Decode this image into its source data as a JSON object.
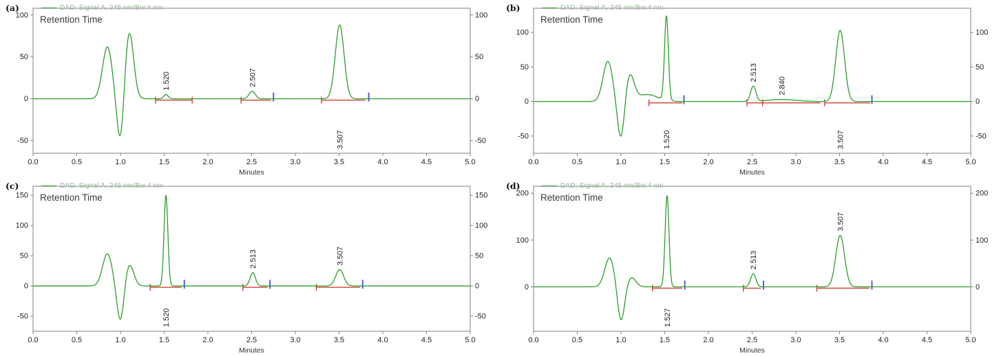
{
  "colors": {
    "trace": "#2a9d2a",
    "baseline_red": "#d04030",
    "marker_blue": "#5b5bd6",
    "frame": "#808080",
    "tick_label": "#222222",
    "legend_text": "#9ab09a"
  },
  "chart_data": [
    {
      "type": "line",
      "panel_label": "(a)",
      "legend": "DAD: Signal A, 245 nm/Bw:4 nm",
      "annotation": "Retention Time",
      "xlabel": "Minutes",
      "x_range": [
        0.0,
        5.0
      ],
      "x_ticks": [
        0.0,
        0.5,
        1.0,
        1.5,
        2.0,
        2.5,
        3.0,
        3.5,
        4.0,
        4.5,
        5.0
      ],
      "y_ticks": [
        -50,
        0,
        50,
        100
      ],
      "y_range": [
        -65,
        108
      ],
      "series_color": "#2a9d2a",
      "solvent_front": [
        {
          "x": 0.85,
          "height": 62,
          "sigma": 0.055
        },
        {
          "x": 1.0,
          "height": -55,
          "sigma": 0.04
        },
        {
          "x": 1.1,
          "height": 80,
          "sigma": 0.05
        }
      ],
      "peaks": [
        {
          "rt": "1.520",
          "x": 1.52,
          "height": 5,
          "sigma": 0.025,
          "label_side": "above"
        },
        {
          "rt": "2.507",
          "x": 2.507,
          "height": 9,
          "sigma": 0.035,
          "label_side": "above"
        },
        {
          "rt": "3.507",
          "x": 3.507,
          "height": 88,
          "sigma": 0.05,
          "label_side": "below"
        }
      ],
      "baselines": [
        {
          "x1": 1.4,
          "x2": 1.82
        },
        {
          "x1": 2.38,
          "x2": 2.72
        },
        {
          "x1": 3.3,
          "x2": 3.8
        }
      ],
      "red_ticks": [
        1.4,
        1.82,
        2.38,
        3.3
      ],
      "blue_ticks": [
        2.75,
        3.84
      ]
    },
    {
      "type": "line",
      "panel_label": "(b)",
      "legend": "DAD: Signal A, 245 nm/Bw:4 nm",
      "annotation": "Retention Time",
      "xlabel": "Minutes",
      "x_range": [
        0.0,
        5.0
      ],
      "x_ticks": [
        0.0,
        0.5,
        1.0,
        1.5,
        2.0,
        2.5,
        3.0,
        3.5,
        4.0,
        4.5,
        5.0
      ],
      "y_ticks": [
        -50,
        0,
        50,
        100
      ],
      "y_range": [
        -75,
        135
      ],
      "series_color": "#2a9d2a",
      "solvent_front": [
        {
          "x": 0.85,
          "height": 58,
          "sigma": 0.055
        },
        {
          "x": 1.0,
          "height": -57,
          "sigma": 0.04
        },
        {
          "x": 1.1,
          "height": 38,
          "sigma": 0.05
        },
        {
          "x": 1.3,
          "height": 10,
          "sigma": 0.12
        }
      ],
      "peaks": [
        {
          "rt": "1.520",
          "x": 1.52,
          "height": 122,
          "sigma": 0.022,
          "label_side": "below"
        },
        {
          "rt": "2.513",
          "x": 2.513,
          "height": 22,
          "sigma": 0.03,
          "label_side": "above"
        },
        {
          "rt": "2.840",
          "x": 2.84,
          "height": 3,
          "sigma": 0.15,
          "label_side": "above"
        },
        {
          "rt": "3.507",
          "x": 3.507,
          "height": 103,
          "sigma": 0.05,
          "label_side": "below"
        }
      ],
      "baselines": [
        {
          "x1": 1.32,
          "x2": 1.7
        },
        {
          "x1": 2.44,
          "x2": 3.28
        },
        {
          "x1": 3.33,
          "x2": 3.85
        }
      ],
      "red_ticks": [
        1.32,
        2.44,
        2.62,
        3.33
      ],
      "blue_ticks": [
        1.72,
        3.87
      ]
    },
    {
      "type": "line",
      "panel_label": "(c)",
      "legend": "DAD: Signal A, 245 nm/Bw:4 nm",
      "annotation": "Retention Time",
      "xlabel": "Minutes",
      "x_range": [
        0.0,
        5.0
      ],
      "x_ticks": [
        0.0,
        0.5,
        1.0,
        1.5,
        2.0,
        2.5,
        3.0,
        3.5,
        4.0,
        4.5,
        5.0
      ],
      "y_ticks": [
        -50,
        0,
        50,
        100,
        150
      ],
      "y_range": [
        -75,
        165
      ],
      "series_color": "#2a9d2a",
      "solvent_front": [
        {
          "x": 0.85,
          "height": 53,
          "sigma": 0.055
        },
        {
          "x": 1.0,
          "height": -61,
          "sigma": 0.04
        },
        {
          "x": 1.1,
          "height": 36,
          "sigma": 0.05
        }
      ],
      "peaks": [
        {
          "rt": "1.520",
          "x": 1.52,
          "height": 150,
          "sigma": 0.022,
          "label_side": "below"
        },
        {
          "rt": "2.513",
          "x": 2.513,
          "height": 22,
          "sigma": 0.03,
          "label_side": "above"
        },
        {
          "rt": "3.507",
          "x": 3.507,
          "height": 27,
          "sigma": 0.045,
          "label_side": "above"
        }
      ],
      "baselines": [
        {
          "x1": 1.34,
          "x2": 1.7
        },
        {
          "x1": 2.4,
          "x2": 2.68
        },
        {
          "x1": 3.24,
          "x2": 3.74
        }
      ],
      "red_ticks": [
        1.34,
        2.4,
        3.24
      ],
      "blue_ticks": [
        1.73,
        2.71,
        3.77
      ]
    },
    {
      "type": "line",
      "panel_label": "(d)",
      "legend": "DAD: Signal A, 245 nm/Bw:4 nm",
      "annotation": "Retention Time",
      "xlabel": "Minutes",
      "x_range": [
        0.0,
        5.0
      ],
      "x_ticks": [
        0.0,
        0.5,
        1.0,
        1.5,
        2.0,
        2.5,
        3.0,
        3.5,
        4.0,
        4.5,
        5.0
      ],
      "y_ticks": [
        0,
        100,
        200
      ],
      "y_range": [
        -95,
        215
      ],
      "series_color": "#2a9d2a",
      "solvent_front": [
        {
          "x": 0.87,
          "height": 62,
          "sigma": 0.055
        },
        {
          "x": 1.0,
          "height": -75,
          "sigma": 0.04
        },
        {
          "x": 1.12,
          "height": 20,
          "sigma": 0.05
        }
      ],
      "peaks": [
        {
          "rt": "1.527",
          "x": 1.527,
          "height": 195,
          "sigma": 0.022,
          "label_side": "below"
        },
        {
          "rt": "2.513",
          "x": 2.513,
          "height": 28,
          "sigma": 0.03,
          "label_side": "above"
        },
        {
          "rt": "3.507",
          "x": 3.507,
          "height": 110,
          "sigma": 0.05,
          "label_side": "above"
        }
      ],
      "baselines": [
        {
          "x1": 1.36,
          "x2": 1.7
        },
        {
          "x1": 2.4,
          "x2": 2.6
        },
        {
          "x1": 3.24,
          "x2": 3.84
        }
      ],
      "red_ticks": [
        1.36,
        2.4,
        3.24
      ],
      "blue_ticks": [
        1.73,
        2.63,
        3.87
      ]
    }
  ]
}
